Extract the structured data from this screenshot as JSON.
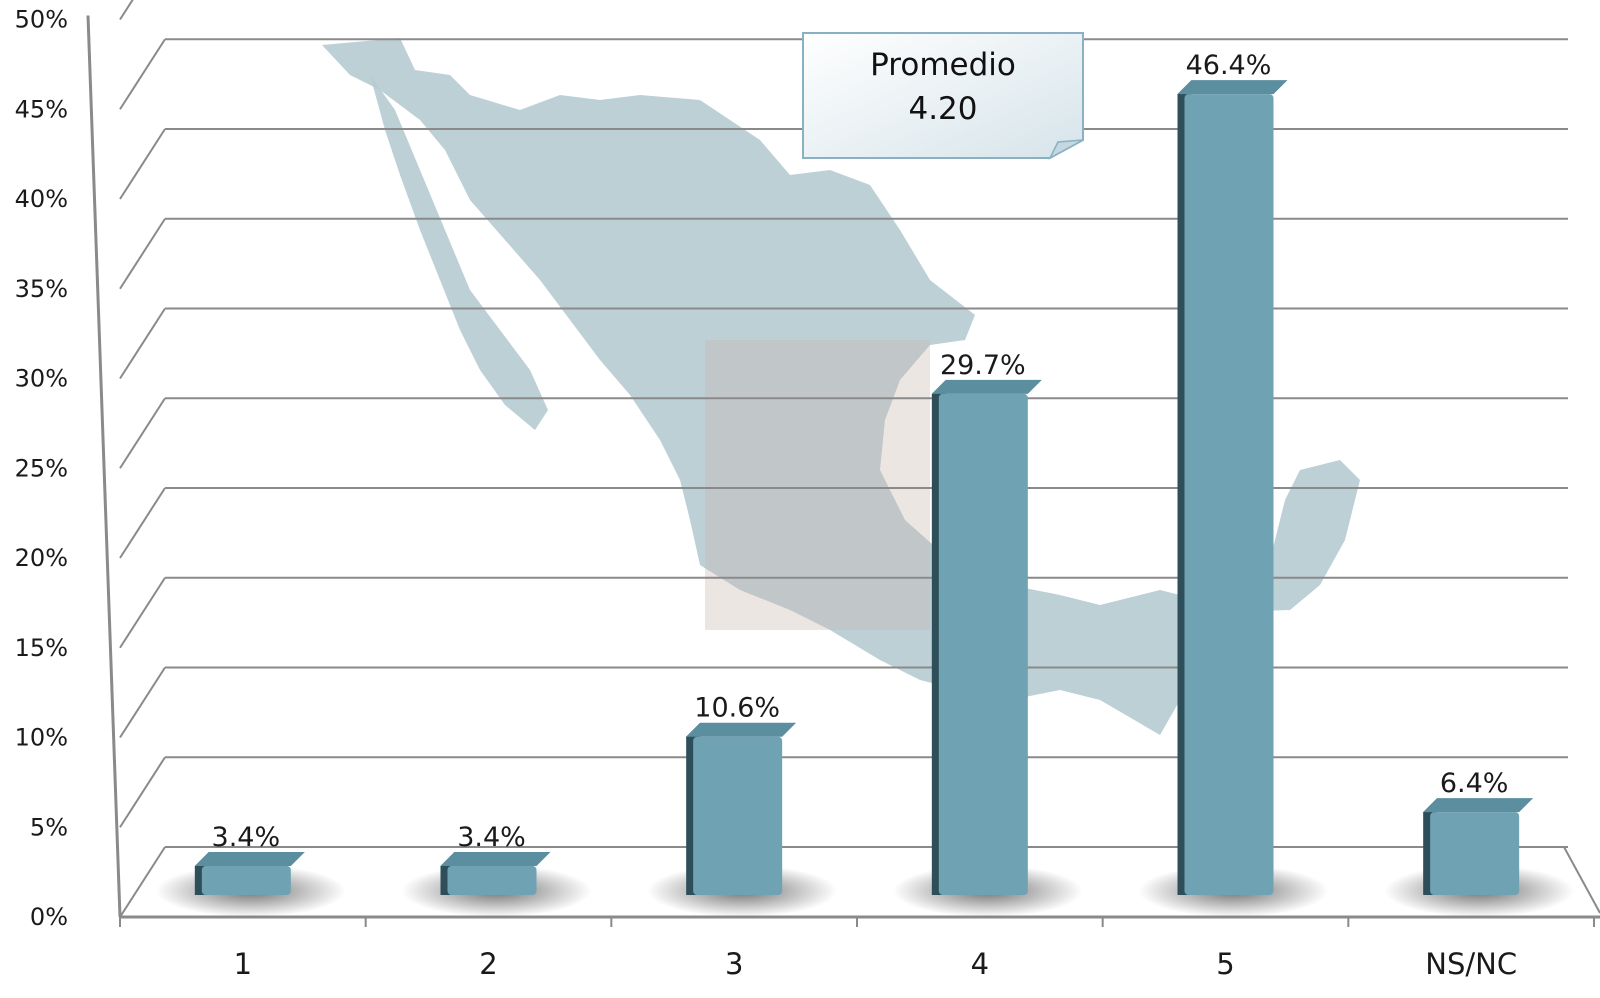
{
  "chart_data": {
    "type": "bar",
    "categories": [
      "1",
      "2",
      "3",
      "4",
      "5",
      "NS/NC"
    ],
    "values": [
      3.4,
      3.4,
      10.6,
      29.7,
      46.4,
      6.4
    ],
    "data_labels": [
      "3.4%",
      "3.4%",
      "10.6%",
      "29.7%",
      "46.4%",
      "6.4%"
    ],
    "y_ticks": [
      "0%",
      "5%",
      "10%",
      "15%",
      "20%",
      "25%",
      "30%",
      "35%",
      "40%",
      "45%",
      "50%"
    ],
    "ylim": [
      0,
      50
    ],
    "grid": true,
    "annotation": {
      "label": "Promedio",
      "value": "4.20"
    },
    "colors": {
      "bar_front": "#6fa3b4",
      "bar_top": "#5b8e9f",
      "bar_side": "#2e4f5a",
      "grid": "#8a8a8a",
      "map_fill": "#b6cbd1",
      "callout_fill": "#e8f0f4",
      "callout_border": "#8ab1c3"
    }
  }
}
